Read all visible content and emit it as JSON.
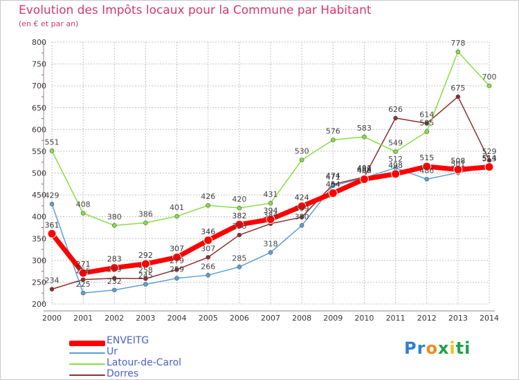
{
  "header": {
    "title": "Evolution des Impôts locaux pour la Commune par Habitant",
    "subtitle": "(en € et par an)"
  },
  "logo": {
    "letters": [
      "P",
      "r",
      "o",
      "x",
      "i",
      "t",
      "i"
    ],
    "colors": [
      "#2e7fd6",
      "#2e7fd6",
      "#f08a1c",
      "#1aa34a",
      "#e8c31c",
      "#1aa34a",
      "#1aa34a"
    ]
  },
  "colors": {
    "title": "#d2396e",
    "grid": "#c0c0c0",
    "axis": "#888888"
  },
  "chart_data": {
    "type": "line",
    "title": "Evolution des Impôts locaux pour la Commune par Habitant",
    "subtitle": "(en € et par an)",
    "xlabel": "",
    "ylabel": "",
    "categories": [
      "2000",
      "2001",
      "2002",
      "2003",
      "2004",
      "2005",
      "2006",
      "2007",
      "2008",
      "2009",
      "2010",
      "2011",
      "2012",
      "2013",
      "2014"
    ],
    "ylim": [
      200,
      800
    ],
    "yticks": [
      200,
      250,
      300,
      350,
      400,
      450,
      500,
      550,
      600,
      650,
      700,
      750,
      800
    ],
    "grid": true,
    "legend_position": "bottom-left",
    "series": [
      {
        "name": "ENVEITG",
        "color": "#ff0000",
        "values": [
          361,
          271,
          283,
          292,
          307,
          346,
          382,
          394,
          424,
          454,
          486,
          498,
          515,
          508,
          514
        ]
      },
      {
        "name": "Ur",
        "color": "#5a9fd6",
        "values": [
          429,
          225,
          232,
          245,
          259,
          266,
          285,
          318,
          380,
          471,
          489,
          512,
          486,
          501,
          513
        ]
      },
      {
        "name": "Latour-de-Carol",
        "color": "#88dd44",
        "values": [
          551,
          408,
          380,
          386,
          401,
          426,
          420,
          431,
          530,
          576,
          583,
          549,
          595,
          778,
          700
        ]
      },
      {
        "name": "Dorres",
        "color": "#8b2e2e",
        "values": [
          234,
          256,
          259,
          258,
          279,
          307,
          358,
          384,
          399,
          474,
          491,
          626,
          614,
          675,
          529
        ]
      }
    ]
  }
}
